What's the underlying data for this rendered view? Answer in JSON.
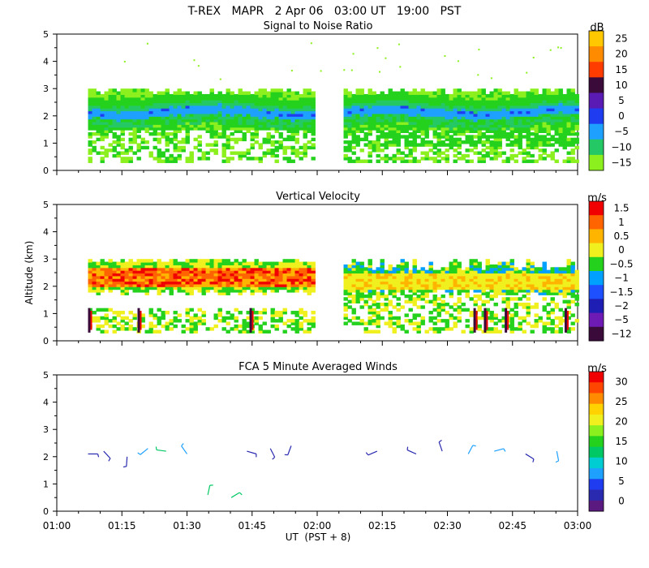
{
  "header": {
    "title_line": "T-REX   MAPR   2 Apr 06   03:00 UT   19:00   PST"
  },
  "colors": {
    "palette": [
      "#3a0a3a",
      "#5a1a80",
      "#2a2ab0",
      "#1f3cf0",
      "#1e90ff",
      "#00cdd2",
      "#00c864",
      "#24d21e",
      "#8cf01e",
      "#e6f01e",
      "#ffd200",
      "#ff9600",
      "#ff5a00",
      "#f00000"
    ],
    "blank": "#ffffff"
  },
  "shared_axes": {
    "x_tick_labels": [
      "01:00",
      "01:15",
      "01:30",
      "01:45",
      "02:00",
      "02:15",
      "02:30",
      "02:45",
      "03:00"
    ],
    "x_label": "UT  (PST + 8)",
    "y_label": "Altitude (km)",
    "y_tick_labels": [
      "0",
      "1",
      "2",
      "3",
      "4",
      "5"
    ]
  },
  "chart_data": [
    {
      "type": "heatmap",
      "title": "Signal to Noise Ratio",
      "units": "dB",
      "x_range_hours": [
        1.0,
        3.0
      ],
      "y_range_km": [
        0,
        5
      ],
      "colorbar_levels": [
        "25",
        "20",
        "15",
        "10",
        "5",
        "0",
        "−5",
        "−10",
        "−15"
      ],
      "colorbar_colors": [
        "#ffc800",
        "#ff8c00",
        "#ff3c00",
        "#3a0a3a",
        "#5a1ab4",
        "#1f3cf0",
        "#1ea0ff",
        "#24c864",
        "#8cf01e"
      ],
      "data_gap_hours": [
        1.99,
        2.09
      ],
      "layers": [
        {
          "alt_km": [
            0.4,
            3.0
          ],
          "value_db": -12
        },
        {
          "alt_km": [
            1.6,
            2.8
          ],
          "value_db": -8
        },
        {
          "alt_km": [
            1.9,
            2.4
          ],
          "value_db": -2
        },
        {
          "alt_km": [
            2.1,
            2.2
          ],
          "value_db": 4
        },
        {
          "alt_km": [
            0.4,
            1.5
          ],
          "value_db": null
        }
      ]
    },
    {
      "type": "heatmap",
      "title": "Vertical Velocity",
      "units": "m/s",
      "x_range_hours": [
        1.0,
        3.0
      ],
      "y_range_km": [
        0,
        5
      ],
      "colorbar_levels": [
        "1.5",
        "1",
        "0.5",
        "0",
        "−0.5",
        "−1",
        "−1.5",
        "−2",
        "−5",
        "−12"
      ],
      "colorbar_colors": [
        "#f00000",
        "#ff6400",
        "#ffb400",
        "#f0f01e",
        "#24d21e",
        "#00a0ff",
        "#1e50ff",
        "#1e1eb4",
        "#6e1ab4",
        "#3a0a3a"
      ],
      "data_gap_hours": [
        1.99,
        2.09
      ],
      "layers": [
        {
          "alt_km": [
            1.7,
            3.0
          ],
          "value_ms": 0.0
        },
        {
          "alt_km": [
            2.0,
            2.9
          ],
          "value_ms": 0.8
        },
        {
          "alt_km": [
            2.2,
            2.6
          ],
          "value_ms": 1.3
        },
        {
          "alt_km": [
            0.3,
            1.0
          ],
          "value_ms": -0.5
        }
      ]
    },
    {
      "type": "scatter",
      "subtype": "wind_barbs",
      "title": "FCA 5 Minute Averaged Winds",
      "units": "m/s",
      "x_range_hours": [
        1.0,
        3.0
      ],
      "y_range_km": [
        0,
        5
      ],
      "colorbar_levels": [
        "30",
        "25",
        "20",
        "15",
        "10",
        "5",
        "0"
      ],
      "colorbar_colors": [
        "#f00000",
        "#ff4600",
        "#ff8c00",
        "#ffd200",
        "#f0f01e",
        "#8cf01e",
        "#24d21e",
        "#00c864",
        "#00cdd2",
        "#1ea0ff",
        "#1f3cf0",
        "#2a2ab0",
        "#5a1a80"
      ],
      "barbs": [
        {
          "time_h": 1.12,
          "alt_km": 2.1,
          "speed_ms": 7
        },
        {
          "time_h": 1.18,
          "alt_km": 2.2,
          "speed_ms": 6
        },
        {
          "time_h": 1.27,
          "alt_km": 2.0,
          "speed_ms": 6
        },
        {
          "time_h": 1.35,
          "alt_km": 2.3,
          "speed_ms": 11
        },
        {
          "time_h": 1.42,
          "alt_km": 2.2,
          "speed_ms": 12
        },
        {
          "time_h": 1.5,
          "alt_km": 2.1,
          "speed_ms": 9
        },
        {
          "time_h": 1.58,
          "alt_km": 0.6,
          "speed_ms": 14
        },
        {
          "time_h": 1.67,
          "alt_km": 0.5,
          "speed_ms": 13
        },
        {
          "time_h": 1.73,
          "alt_km": 2.2,
          "speed_ms": 6
        },
        {
          "time_h": 1.82,
          "alt_km": 2.3,
          "speed_ms": 6
        },
        {
          "time_h": 1.9,
          "alt_km": 2.4,
          "speed_ms": 6
        },
        {
          "time_h": 2.23,
          "alt_km": 2.2,
          "speed_ms": 6
        },
        {
          "time_h": 2.38,
          "alt_km": 2.1,
          "speed_ms": 6
        },
        {
          "time_h": 2.48,
          "alt_km": 2.2,
          "speed_ms": 7
        },
        {
          "time_h": 2.58,
          "alt_km": 2.1,
          "speed_ms": 8
        },
        {
          "time_h": 2.68,
          "alt_km": 2.2,
          "speed_ms": 11
        },
        {
          "time_h": 2.8,
          "alt_km": 2.1,
          "speed_ms": 7
        },
        {
          "time_h": 2.92,
          "alt_km": 2.2,
          "speed_ms": 8
        }
      ]
    }
  ]
}
